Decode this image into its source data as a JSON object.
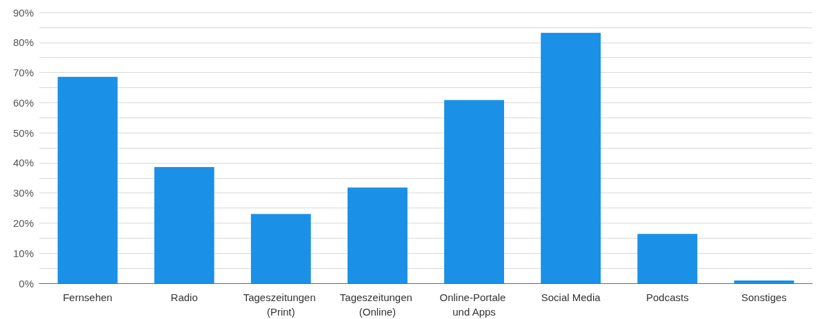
{
  "chart_data": {
    "type": "bar",
    "categories": [
      "Fernsehen",
      "Radio",
      "Tageszeitungen (Print)",
      "Tageszeitungen (Online)",
      "Online-Portale und Apps",
      "Social Media",
      "Podcasts",
      "Sonstiges"
    ],
    "values": [
      68.6,
      38.6,
      23.0,
      31.8,
      60.9,
      83.2,
      16.4,
      0.9
    ],
    "color": "#1a90e6",
    "ylim": [
      0,
      90
    ],
    "yticks": [
      {
        "value": 0,
        "label": "0%"
      },
      {
        "value": 5,
        "label": null
      },
      {
        "value": 10,
        "label": "10%"
      },
      {
        "value": 15,
        "label": null
      },
      {
        "value": 20,
        "label": "20%"
      },
      {
        "value": 25,
        "label": null
      },
      {
        "value": 30,
        "label": "30%"
      },
      {
        "value": 35,
        "label": null
      },
      {
        "value": 40,
        "label": "40%"
      },
      {
        "value": 45,
        "label": null
      },
      {
        "value": 50,
        "label": "50%"
      },
      {
        "value": 55,
        "label": null
      },
      {
        "value": 60,
        "label": "60%"
      },
      {
        "value": 65,
        "label": null
      },
      {
        "value": 70,
        "label": "70%"
      },
      {
        "value": 75,
        "label": null
      },
      {
        "value": 80,
        "label": "80%"
      },
      {
        "value": 85,
        "label": null
      },
      {
        "value": 90,
        "label": "90%"
      }
    ],
    "grid": "y"
  }
}
